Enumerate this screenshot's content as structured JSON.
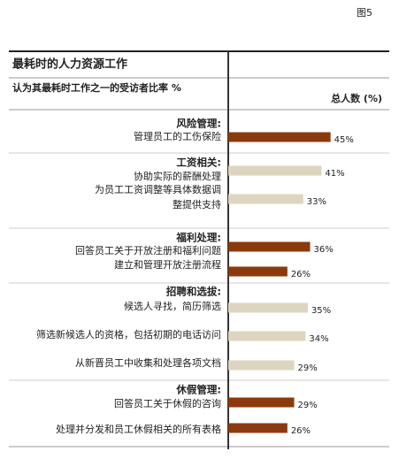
{
  "chart_data": {
    "type": "grouped-hbar",
    "figure_label": "图5",
    "title": "最耗时的人力资源工作",
    "subtitle": "认为其最耗时工作之一的受访者比率 %",
    "value_header": "总人数 (%)",
    "groups": [
      {
        "name": "风险管理:",
        "color": "#8b3a0e",
        "items": [
          {
            "label": [
              "管理员工的工伤保险"
            ],
            "value": 45,
            "value_label": "45%"
          }
        ]
      },
      {
        "name": "工资相关:",
        "color": "#ddd5c0",
        "items": [
          {
            "label": [
              "协助实际的薪酬处理"
            ],
            "value": 41,
            "value_label": "41%"
          },
          {
            "label": [
              "为员工工资调整等具体数据调",
              "整提供支持"
            ],
            "value": 33,
            "value_label": "33%"
          }
        ]
      },
      {
        "name": "福利处理:",
        "color": "#8b3a0e",
        "items": [
          {
            "label": [
              "回答员工关于开放注册和福利问题"
            ],
            "value": 36,
            "value_label": "36%"
          },
          {
            "label": [
              "建立和管理开放注册流程"
            ],
            "value": 26,
            "value_label": "26%"
          }
        ]
      },
      {
        "name": "招聘和选拔:",
        "color": "#ddd5c0",
        "items": [
          {
            "label": [
              "候选人寻找，简历筛选"
            ],
            "value": 35,
            "value_label": "35%"
          },
          {
            "label": [
              "筛选新候选人的资格，包括初期的电话访问"
            ],
            "value": 34,
            "value_label": "34%"
          },
          {
            "label": [
              "从新晋员工中收集和处理各项文档"
            ],
            "value": 29,
            "value_label": "29%"
          }
        ]
      },
      {
        "name": "休假管理:",
        "color": "#8b3a0e",
        "items": [
          {
            "label": [
              "回答员工关于休假的咨询"
            ],
            "value": 29,
            "value_label": "29%"
          },
          {
            "label": [
              "处理并分发和员工休假相关的所有表格"
            ],
            "value": 26,
            "value_label": "26%"
          }
        ]
      }
    ]
  }
}
